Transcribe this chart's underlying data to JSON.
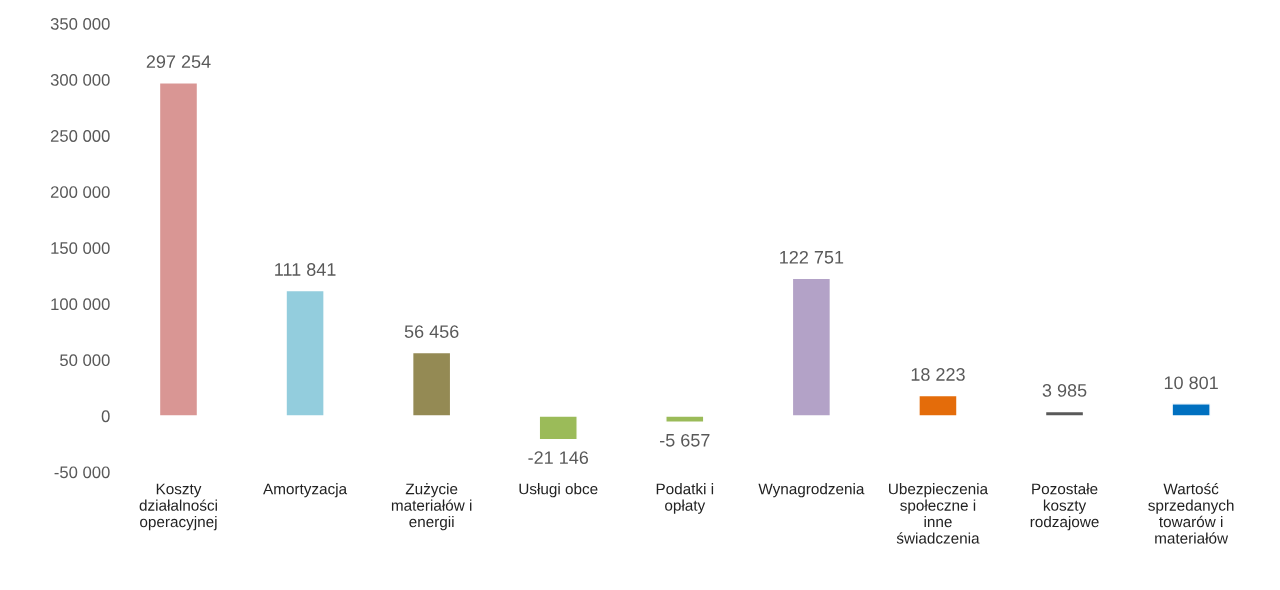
{
  "chart_data": {
    "type": "bar",
    "categories": [
      "Koszty działalności operacyjnej",
      "Amortyzacja",
      "Zużycie materiałów i energii",
      "Usługi obce",
      "Podatki i opłaty",
      "Wynagrodzenia",
      "Ubezpieczenia społeczne i inne świadczenia",
      "Pozostałe koszty rodzajowe",
      "Wartość sprzedanych towarów i materiałów"
    ],
    "values": [
      297254,
      111841,
      56456,
      -21146,
      -5657,
      122751,
      18223,
      3985,
      10801
    ],
    "colors": [
      "#d99694",
      "#93cddd",
      "#948a54",
      "#9bbb59",
      "#9bbb59",
      "#b3a2c7",
      "#e46c0a",
      "#595959",
      "#0070c0"
    ],
    "value_labels": [
      "297 254",
      "111 841",
      "56 456",
      "-21 146",
      "-5 657",
      "122 751",
      "18 223",
      "3 985",
      "10 801"
    ],
    "ylim": [
      -50000,
      350000
    ],
    "yticks": [
      {
        "value": -50000,
        "label": "-50 000"
      },
      0,
      {
        "value": 50000,
        "label": "50 000"
      },
      {
        "value": 100000,
        "label": "100 000"
      },
      {
        "value": 150000,
        "label": "150 000"
      },
      {
        "value": 200000,
        "label": "200 000"
      },
      {
        "value": 250000,
        "label": "250 000"
      },
      {
        "value": 300000,
        "label": "300 000"
      },
      {
        "value": 350000,
        "label": "350 000"
      }
    ],
    "grid": false,
    "legend": false
  }
}
